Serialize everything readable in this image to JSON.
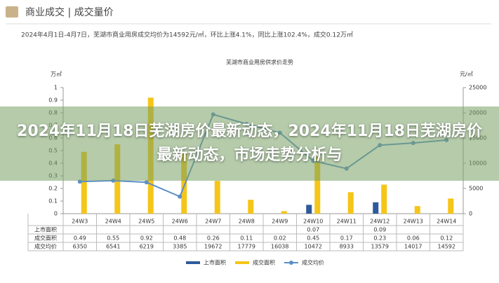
{
  "header": {
    "title": "商业成交 | 成交量价",
    "subtitle": "2024年4月1日-4月7日，芜湖市商业用房成交均价为14592元/㎡，环比上涨4.1%，同比上涨102.4%，成交0.12万㎡"
  },
  "overlay": {
    "title": "2024年11月18日芜湖房价最新动态，2024年11月18日芜湖房价最新动态，市场走势分析与"
  },
  "chart_data": {
    "type": "bar",
    "title": "芜湖市商业用房供求价走势",
    "y_label": "万㎡",
    "y2_label": "元/㎡",
    "categories": [
      "24W3",
      "24W4",
      "24W5",
      "24W6",
      "24W7",
      "24W8",
      "24W9",
      "24W10",
      "24W11",
      "24W12",
      "24W13",
      "24W14"
    ],
    "series": [
      {
        "name": "上市面积",
        "color": "#2e5a9c",
        "values": [
          null,
          null,
          null,
          null,
          null,
          null,
          null,
          0.07,
          null,
          0.09,
          null,
          null
        ]
      },
      {
        "name": "成交面积",
        "color": "#f5c518",
        "values": [
          0.49,
          0.55,
          0.92,
          0.48,
          0.26,
          0.11,
          0.02,
          0.45,
          0.17,
          0.23,
          0.06,
          0.12
        ]
      },
      {
        "name": "成交均价",
        "color": "#5b8fc7",
        "type": "line",
        "axis": "y2",
        "values": [
          6350,
          6541,
          6219,
          3385,
          19672,
          17779,
          16038,
          10472,
          8933,
          13579,
          14017,
          14592
        ]
      }
    ],
    "ylim": [
      0,
      1
    ],
    "yticks": [
      0,
      0.1,
      0.2,
      0.3,
      0.4,
      0.5,
      0.6,
      0.7,
      0.8,
      0.9,
      1
    ],
    "y2lim": [
      0,
      25000
    ],
    "y2ticks": [
      0,
      5000,
      10000,
      15000,
      20000,
      25000
    ],
    "grid": false
  }
}
